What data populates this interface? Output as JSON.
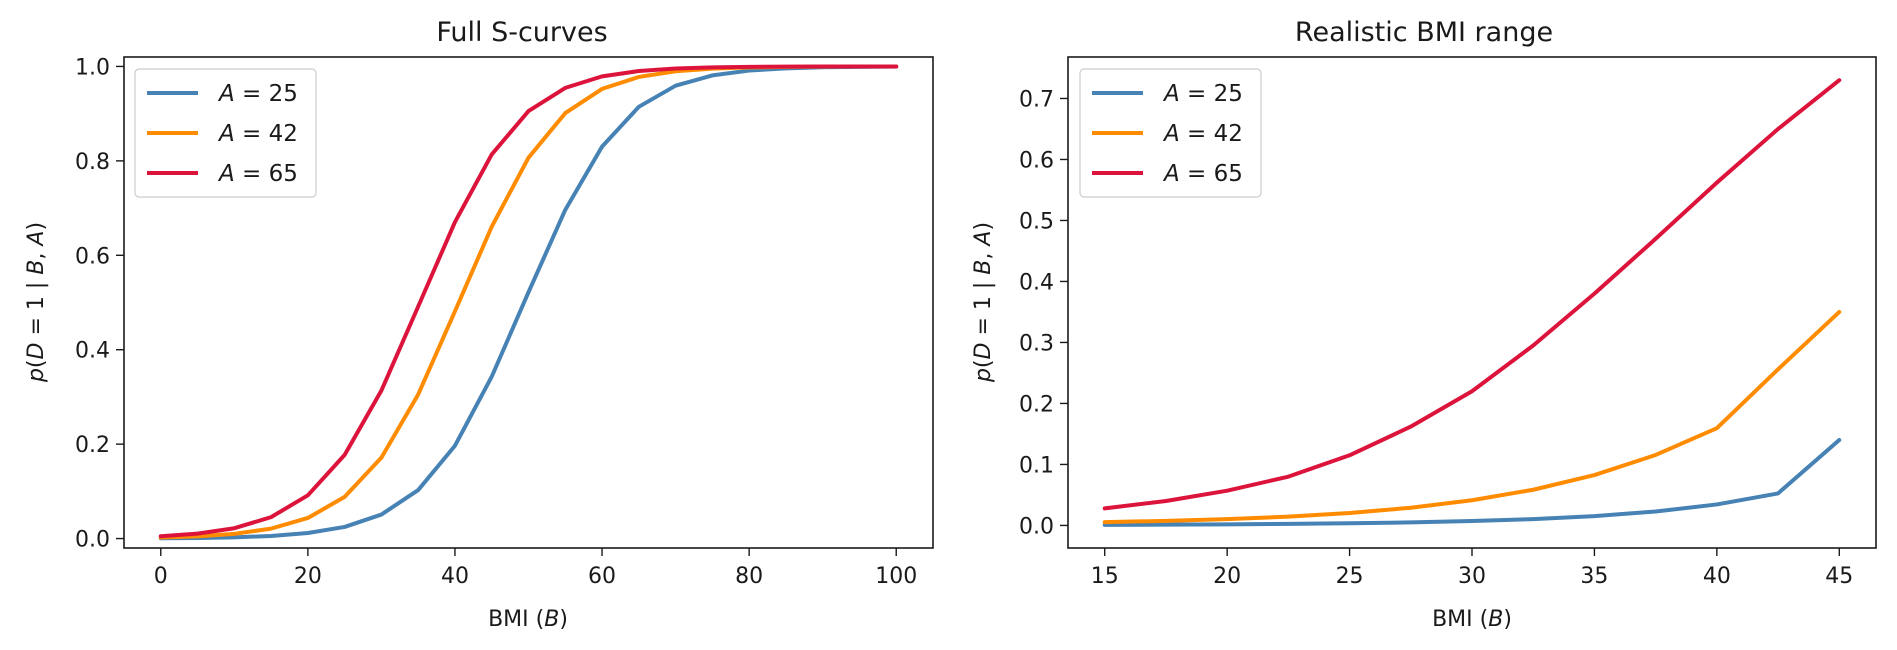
{
  "chart_data": [
    {
      "type": "line",
      "title": "Full S-curves",
      "xlabel": "BMI (B)",
      "ylabel": "p(D = 1 | B, A)",
      "xlim": [
        -5,
        105
      ],
      "ylim": [
        -0.02,
        1.02
      ],
      "xticks": [
        0,
        20,
        40,
        60,
        80,
        100
      ],
      "xtick_labels": [
        "0",
        "20",
        "40",
        "60",
        "80",
        "100"
      ],
      "yticks": [
        0.0,
        0.2,
        0.4,
        0.6,
        0.8,
        1.0
      ],
      "ytick_labels": [
        "0.0",
        "0.2",
        "0.4",
        "0.6",
        "0.8",
        "1.0"
      ],
      "legend_position": "top-left",
      "x": [
        0,
        5,
        10,
        15,
        20,
        25,
        30,
        35,
        40,
        45,
        50,
        55,
        60,
        65,
        70,
        75,
        80,
        85,
        90,
        95,
        100
      ],
      "series": [
        {
          "name": "A = 25",
          "color": "#4682b4",
          "values": [
            0.0006,
            0.0012,
            0.0026,
            0.0055,
            0.0117,
            0.0246,
            0.0509,
            0.1027,
            0.1966,
            0.343,
            0.5218,
            0.6962,
            0.8301,
            0.9145,
            0.9592,
            0.981,
            0.9913,
            0.996,
            0.9982,
            0.9992,
            0.9996
          ]
        },
        {
          "name": "A = 42",
          "color": "#ff8c00",
          "values": [
            0.0022,
            0.0047,
            0.01,
            0.021,
            0.0436,
            0.0882,
            0.1714,
            0.3052,
            0.4813,
            0.6606,
            0.8067,
            0.9012,
            0.9524,
            0.9778,
            0.9898,
            0.9954,
            0.9979,
            0.999,
            0.9996,
            0.9998,
            0.9999
          ]
        },
        {
          "name": "A = 65",
          "color": "#dc143c",
          "values": [
            0.0049,
            0.0104,
            0.0219,
            0.0454,
            0.0916,
            0.1773,
            0.3136,
            0.4915,
            0.6703,
            0.8136,
            0.9054,
            0.9546,
            0.9789,
            0.9903,
            0.9956,
            0.998,
            0.9991,
            0.9996,
            0.9998,
            0.9999,
            1.0
          ]
        }
      ]
    },
    {
      "type": "line",
      "title": "Realistic BMI range",
      "xlabel": "BMI (B)",
      "ylabel": "p(D = 1 | B, A)",
      "xlim": [
        13.5,
        46.5
      ],
      "ylim": [
        -0.037,
        0.768
      ],
      "xticks": [
        15,
        20,
        25,
        30,
        35,
        40,
        45
      ],
      "xtick_labels": [
        "15",
        "20",
        "25",
        "30",
        "35",
        "40",
        "45"
      ],
      "yticks": [
        0.0,
        0.1,
        0.2,
        0.3,
        0.4,
        0.5,
        0.6,
        0.7
      ],
      "ytick_labels": [
        "0.0",
        "0.1",
        "0.2",
        "0.3",
        "0.4",
        "0.5",
        "0.6",
        "0.7"
      ],
      "legend_position": "top-left",
      "x": [
        15,
        17.5,
        20,
        22.5,
        25,
        27.5,
        30,
        32.5,
        35,
        37.5,
        40,
        42.5,
        45
      ],
      "series": [
        {
          "name": "A = 25",
          "color": "#4682b4",
          "values": [
            0.001,
            0.0013,
            0.0018,
            0.0025,
            0.0035,
            0.005,
            0.0072,
            0.0104,
            0.0153,
            0.0228,
            0.0344,
            0.0525,
            0.14
          ]
        },
        {
          "name": "A = 42",
          "color": "#ff8c00",
          "values": [
            0.0055,
            0.0075,
            0.0103,
            0.0144,
            0.0204,
            0.029,
            0.0413,
            0.0585,
            0.0826,
            0.1155,
            0.1594,
            0.256,
            0.35
          ]
        },
        {
          "name": "A = 65",
          "color": "#dc143c",
          "values": [
            0.028,
            0.04,
            0.057,
            0.08,
            0.115,
            0.162,
            0.22,
            0.295,
            0.38,
            0.47,
            0.562,
            0.65,
            0.73
          ]
        }
      ]
    }
  ]
}
